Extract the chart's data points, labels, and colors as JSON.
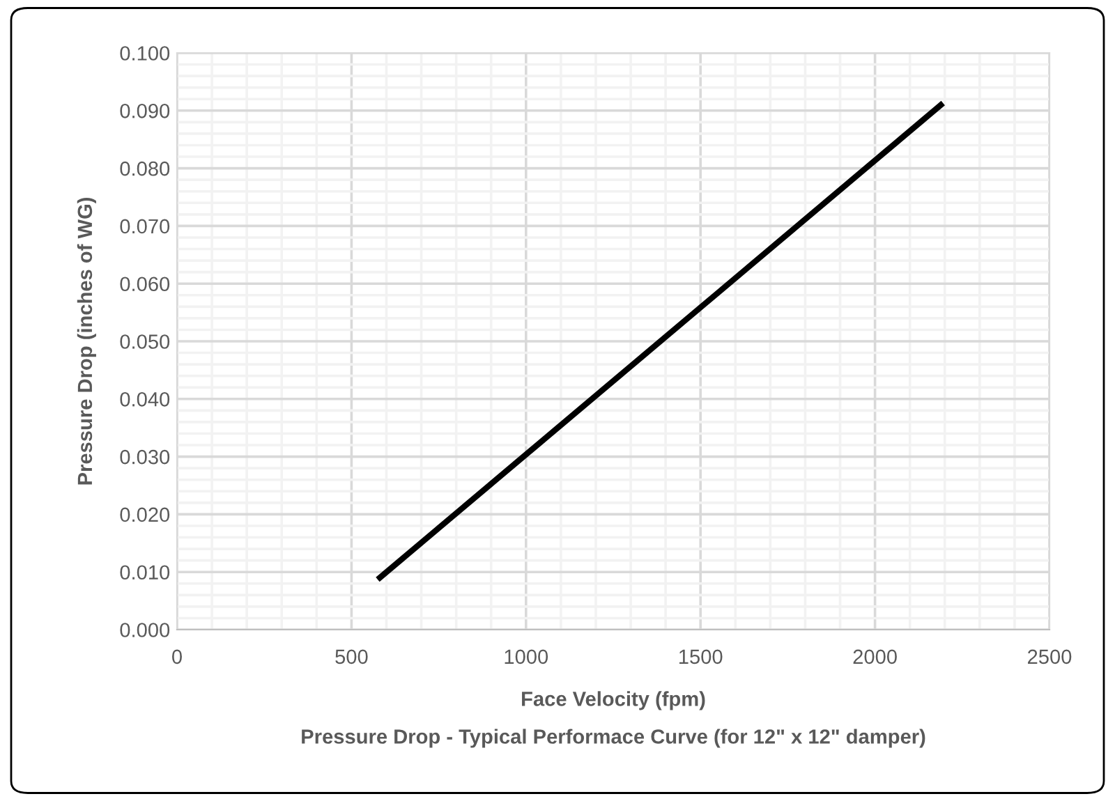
{
  "chart_data": {
    "type": "line",
    "title": "Pressure Drop - Typical Performace Curve (for 12\" x 12\" damper)",
    "xlabel": "Face Velocity (fpm)",
    "ylabel": "Pressure Drop (inches of WG)",
    "x": [
      575,
      2195
    ],
    "series": [
      {
        "color": "#000000",
        "values": [
          0.0087,
          0.0913
        ]
      }
    ],
    "xlim": [
      0,
      2500
    ],
    "xticks": [
      0,
      500,
      1000,
      1500,
      2000,
      2500
    ],
    "ylim": [
      0,
      0.1
    ],
    "yticks": [
      {
        "value": 0,
        "label": "0.000"
      },
      {
        "value": 0.01,
        "label": "0.010"
      },
      {
        "value": 0.02,
        "label": "0.020"
      },
      {
        "value": 0.03,
        "label": "0.030"
      },
      {
        "value": 0.04,
        "label": "0.040"
      },
      {
        "value": 0.05,
        "label": "0.050"
      },
      {
        "value": 0.06,
        "label": "0.060"
      },
      {
        "value": 0.07,
        "label": "0.070"
      },
      {
        "value": 0.08,
        "label": "0.080"
      },
      {
        "value": 0.09,
        "label": "0.090"
      },
      {
        "value": 0.1,
        "label": "0.100"
      }
    ],
    "grid": true,
    "legend": false,
    "marker": "none",
    "line_style": "solid"
  }
}
